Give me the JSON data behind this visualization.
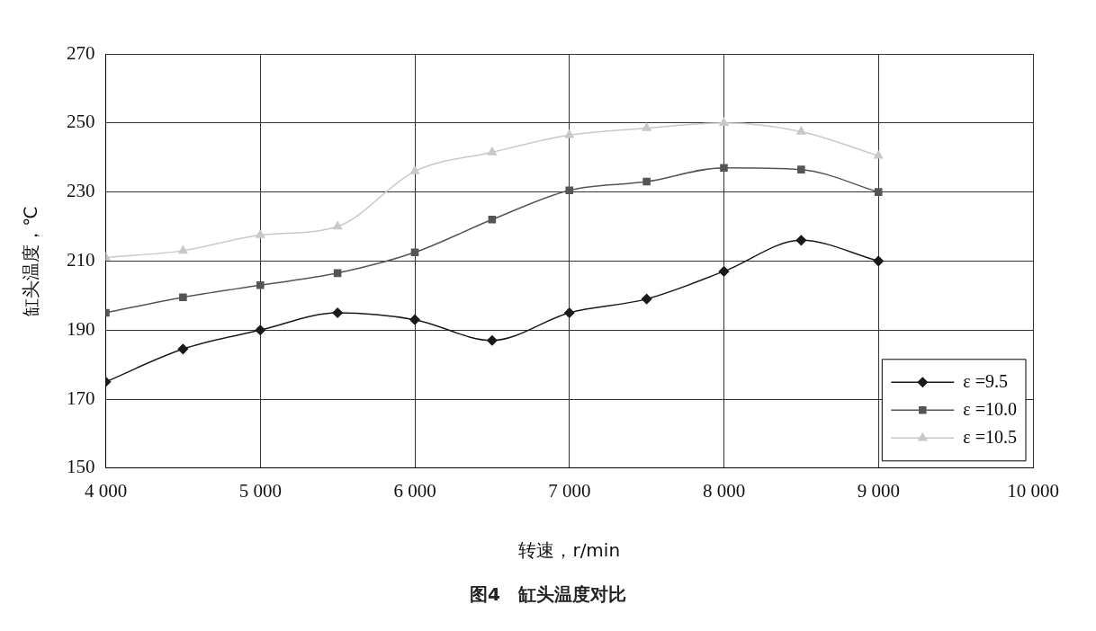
{
  "chart_data": {
    "type": "line",
    "title": "图4　缸头温度对比",
    "xlabel": "转速，r/min",
    "ylabel": "缸头温度，℃",
    "x": [
      4000,
      4500,
      5000,
      5500,
      6000,
      6500,
      7000,
      7500,
      8000,
      8500,
      9000
    ],
    "series": [
      {
        "name": "ε =9.5",
        "color": "#1a1a1a",
        "marker": "diamond",
        "values": [
          175,
          184.5,
          190,
          195,
          193,
          187,
          195,
          199,
          207,
          216,
          210
        ]
      },
      {
        "name": "ε =10.0",
        "color": "#555555",
        "marker": "square",
        "values": [
          195,
          199.5,
          203,
          206.5,
          212.5,
          222,
          230.5,
          233,
          237,
          236.5,
          230
        ]
      },
      {
        "name": "ε =10.5",
        "color": "#c8c8c8",
        "marker": "triangle",
        "values": [
          211,
          213,
          217.5,
          220,
          236,
          241.5,
          246.5,
          248.5,
          250,
          247.5,
          240.5
        ]
      }
    ],
    "xlim": [
      4000,
      10000
    ],
    "xticks": [
      {
        "value": 4000,
        "label": "4 000"
      },
      {
        "value": 5000,
        "label": "5 000"
      },
      {
        "value": 6000,
        "label": "6 000"
      },
      {
        "value": 7000,
        "label": "7 000"
      },
      {
        "value": 8000,
        "label": "8 000"
      },
      {
        "value": 9000,
        "label": "9 000"
      },
      {
        "value": 10000,
        "label": "10 000"
      }
    ],
    "ylim": [
      150,
      270
    ],
    "yticks": [
      150,
      170,
      190,
      210,
      230,
      250,
      270
    ],
    "grid": true,
    "legend": "bottom right",
    "line_style": "solid"
  }
}
